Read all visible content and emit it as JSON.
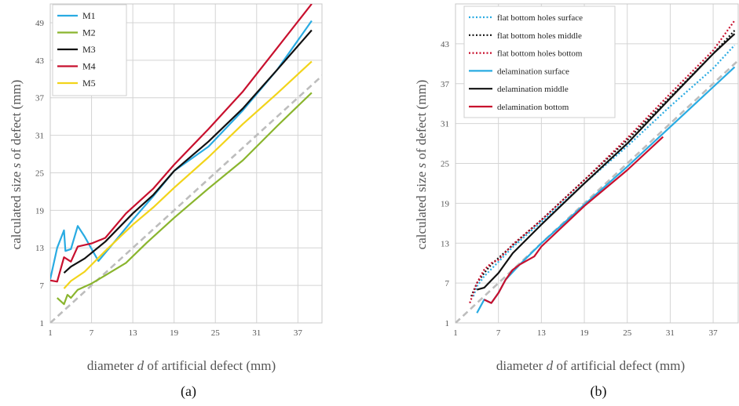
{
  "chart_data": [
    {
      "type": "line",
      "panel_label": "(a)",
      "title": "",
      "xlabel": {
        "before": "diameter ",
        "var": "d",
        "after": " of artificial defect (mm)"
      },
      "ylabel": {
        "before": "calculated size ",
        "var": "s",
        "after": " of defect (mm)"
      },
      "xlim": [
        1,
        40.5
      ],
      "ylim": [
        1,
        52
      ],
      "xticks": [
        1,
        7,
        13,
        19,
        25,
        31,
        37
      ],
      "yticks": [
        1,
        7,
        13,
        19,
        25,
        31,
        37,
        43,
        49
      ],
      "grid": true,
      "legend": "top-left",
      "reference_line": {
        "style": "dashed",
        "color": "#bdbdbd",
        "from": [
          1,
          1
        ],
        "to": [
          41,
          41
        ]
      },
      "series": [
        {
          "name": "M1",
          "color": "#29abe2",
          "dash": "solid",
          "points": [
            [
              1,
              8
            ],
            [
              2,
              13
            ],
            [
              3,
              15.8
            ],
            [
              3.2,
              12.5
            ],
            [
              4,
              12.8
            ],
            [
              5,
              16.5
            ],
            [
              6,
              14.8
            ],
            [
              8,
              10.9
            ],
            [
              10,
              13.5
            ],
            [
              13,
              17.5
            ],
            [
              16,
              21.3
            ],
            [
              19,
              25.3
            ],
            [
              24,
              29.2
            ],
            [
              29,
              35
            ],
            [
              34,
              41.5
            ],
            [
              39,
              49.3
            ]
          ]
        },
        {
          "name": "M2",
          "color": "#8ab52e",
          "dash": "solid",
          "points": [
            [
              2,
              5
            ],
            [
              3,
              4
            ],
            [
              3.5,
              5.5
            ],
            [
              4,
              5
            ],
            [
              5,
              6.3
            ],
            [
              7,
              7.3
            ],
            [
              9,
              8.6
            ],
            [
              12,
              10.6
            ],
            [
              15,
              13.8
            ],
            [
              19,
              17.8
            ],
            [
              24,
              22.5
            ],
            [
              29,
              27
            ],
            [
              34,
              32.5
            ],
            [
              39,
              37.8
            ]
          ]
        },
        {
          "name": "M3",
          "color": "#111111",
          "dash": "solid",
          "points": [
            [
              3,
              9
            ],
            [
              4,
              10
            ],
            [
              6,
              11.3
            ],
            [
              9,
              14
            ],
            [
              13,
              18.5
            ],
            [
              16,
              21.5
            ],
            [
              19,
              25.3
            ],
            [
              24,
              30
            ],
            [
              29,
              35.3
            ],
            [
              34,
              41.5
            ],
            [
              39,
              47.8
            ]
          ]
        },
        {
          "name": "M4",
          "color": "#c8102e",
          "dash": "solid",
          "points": [
            [
              1,
              7.8
            ],
            [
              2,
              7.6
            ],
            [
              3,
              11.5
            ],
            [
              4,
              10.8
            ],
            [
              5,
              13.2
            ],
            [
              7,
              13.7
            ],
            [
              9,
              14.6
            ],
            [
              12,
              18.5
            ],
            [
              16,
              22.5
            ],
            [
              19,
              26.3
            ],
            [
              24,
              32
            ],
            [
              29,
              38
            ],
            [
              34,
              45
            ],
            [
              39,
              52
            ]
          ]
        },
        {
          "name": "M5",
          "color": "#f2d41a",
          "dash": "solid",
          "points": [
            [
              3,
              6.5
            ],
            [
              4,
              7.7
            ],
            [
              6,
              9.2
            ],
            [
              9,
              12.5
            ],
            [
              13,
              16.7
            ],
            [
              16,
              19.5
            ],
            [
              19,
              22.6
            ],
            [
              24,
              27.5
            ],
            [
              29,
              32.8
            ],
            [
              34,
              37.7
            ],
            [
              39,
              42.8
            ]
          ]
        }
      ]
    },
    {
      "type": "line",
      "panel_label": "(b)",
      "title": "",
      "xlabel": {
        "before": "diameter ",
        "var": "d",
        "after": " of artificial defect (mm)"
      },
      "ylabel": {
        "before": "calculated size ",
        "var": "s",
        "after": " of defect (mm)"
      },
      "xlim": [
        1,
        40.5
      ],
      "ylim": [
        1,
        49
      ],
      "xticks": [
        1,
        7,
        13,
        19,
        25,
        31,
        37
      ],
      "yticks": [
        1,
        7,
        13,
        19,
        25,
        31,
        37,
        43
      ],
      "grid": true,
      "legend": "top-left",
      "reference_line": {
        "style": "dashed",
        "color": "#bdbdbd",
        "from": [
          1,
          1
        ],
        "to": [
          41,
          41
        ]
      },
      "series": [
        {
          "name": "flat bottom holes surface",
          "color": "#29abe2",
          "dash": "dotted",
          "points": [
            [
              3.5,
              5
            ],
            [
              4,
              6.5
            ],
            [
              5,
              8
            ],
            [
              7,
              10.2
            ],
            [
              9,
              12.4
            ],
            [
              13,
              16.2
            ],
            [
              19,
              22
            ],
            [
              25,
              27.6
            ],
            [
              31,
              33.6
            ],
            [
              37,
              39.3
            ],
            [
              40,
              42.8
            ]
          ]
        },
        {
          "name": "flat bottom holes middle",
          "color": "#111111",
          "dash": "dotted",
          "points": [
            [
              3.2,
              5
            ],
            [
              4,
              7
            ],
            [
              5,
              8.5
            ],
            [
              6,
              9.8
            ],
            [
              9,
              12.7
            ],
            [
              13,
              16.5
            ],
            [
              19,
              22.5
            ],
            [
              25,
              28.5
            ],
            [
              31,
              35
            ],
            [
              37,
              41.5
            ],
            [
              40,
              45
            ]
          ]
        },
        {
          "name": "flat bottom holes bottom",
          "color": "#c8102e",
          "dash": "dotted",
          "points": [
            [
              3,
              4
            ],
            [
              4,
              7
            ],
            [
              5,
              9
            ],
            [
              6,
              10
            ],
            [
              7,
              10.5
            ],
            [
              9,
              12.8
            ],
            [
              13,
              16.5
            ],
            [
              19,
              22.5
            ],
            [
              25,
              28.8
            ],
            [
              31,
              35.5
            ],
            [
              37,
              42
            ],
            [
              40,
              46.5
            ]
          ]
        },
        {
          "name": "delamination surface",
          "color": "#29abe2",
          "dash": "solid",
          "points": [
            [
              4,
              2.5
            ],
            [
              5,
              4.5
            ],
            [
              6,
              4
            ],
            [
              7,
              5.5
            ],
            [
              8,
              7.5
            ],
            [
              10,
              9.8
            ],
            [
              13,
              13
            ],
            [
              19,
              18.8
            ],
            [
              25,
              24.5
            ],
            [
              31,
              30.5
            ],
            [
              37,
              36.5
            ],
            [
              40,
              39.5
            ]
          ]
        },
        {
          "name": "delamination middle",
          "color": "#111111",
          "dash": "solid",
          "points": [
            [
              4,
              6
            ],
            [
              5,
              6.3
            ],
            [
              7,
              8.5
            ],
            [
              9,
              11.5
            ],
            [
              13,
              15.8
            ],
            [
              19,
              22
            ],
            [
              25,
              28
            ],
            [
              31,
              34.8
            ],
            [
              37,
              41.5
            ],
            [
              40,
              44.5
            ]
          ]
        },
        {
          "name": "delamination bottom",
          "color": "#c8102e",
          "dash": "solid",
          "points": [
            [
              5,
              4.5
            ],
            [
              6,
              4
            ],
            [
              7,
              5.5
            ],
            [
              8,
              7.5
            ],
            [
              9,
              9
            ],
            [
              10,
              9.8
            ],
            [
              12,
              11
            ],
            [
              13,
              12.5
            ],
            [
              19,
              18.6
            ],
            [
              25,
              24
            ],
            [
              30,
              29
            ]
          ]
        }
      ]
    }
  ]
}
